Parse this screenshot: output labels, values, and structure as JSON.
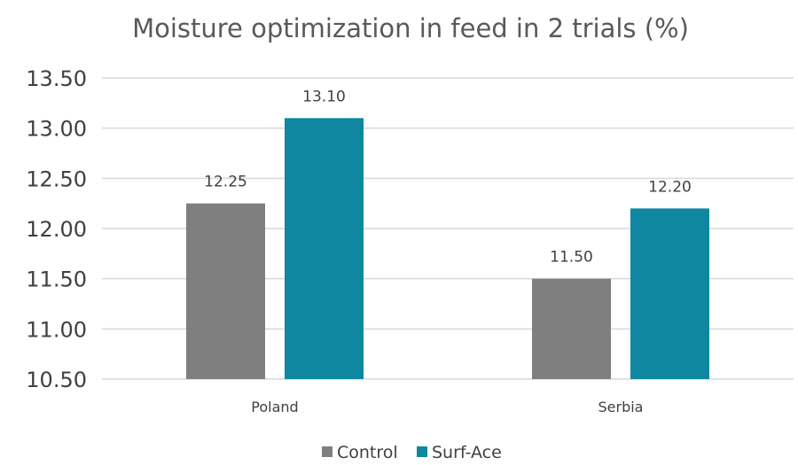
{
  "chart_data": {
    "type": "bar",
    "title": "Moisture optimization in feed in 2 trials (%)",
    "categories": [
      "Poland",
      "Serbia"
    ],
    "series": [
      {
        "name": "Control",
        "values": [
          12.25,
          11.5
        ],
        "labels": [
          "12.25",
          "11.50"
        ],
        "color": "#7f7f7f"
      },
      {
        "name": "Surf-Ace",
        "values": [
          13.1,
          12.2
        ],
        "labels": [
          "13.10",
          "12.20"
        ],
        "color": "#0f87a0"
      }
    ],
    "ylim": [
      10.5,
      13.5
    ],
    "yticks": [
      "10.50",
      "11.00",
      "11.50",
      "12.00",
      "12.50",
      "13.00",
      "13.50"
    ],
    "grid": true,
    "legend_position": "bottom"
  }
}
